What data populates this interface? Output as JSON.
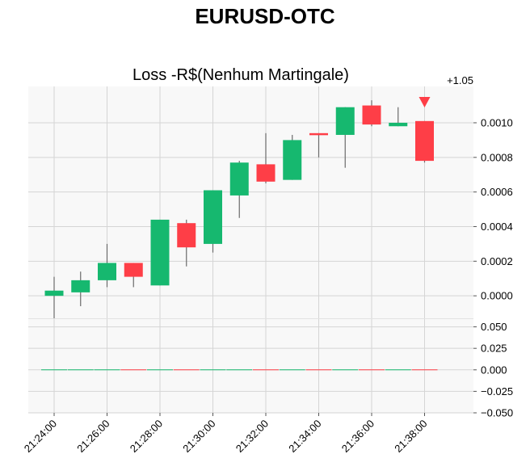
{
  "figure": {
    "title": "EURUSD-OTC"
  },
  "chart_data": {
    "type": "candlestick",
    "subtitle": "Loss -R$(Nenhum Martingale)",
    "price_offset_label": "+1.05",
    "x_ticks": [
      "21:24:00",
      "21:26:00",
      "21:28:00",
      "21:30:00",
      "21:32:00",
      "21:34:00",
      "21:36:00",
      "21:38:00"
    ],
    "price_yticks": [
      "0.0000",
      "0.0002",
      "0.0004",
      "0.0006",
      "0.0008",
      "0.0010"
    ],
    "price_ylim": [
      -0.00013,
      0.00121
    ],
    "volume_yticks": [
      "0.050",
      "0.025",
      "0.000",
      "−0.025",
      "−0.050"
    ],
    "volume_ylim": [
      -0.05,
      0.059
    ],
    "up_color": "#16b86f",
    "down_color": "#fe3e47",
    "marker": {
      "time": "21:38:00",
      "symbol": "down-triangle",
      "color": "#fe3e47"
    },
    "candles": [
      {
        "time": "21:24:00",
        "open": 0.0,
        "high": 0.00011,
        "low": -0.00013,
        "close": 3e-05
      },
      {
        "time": "21:25:00",
        "open": 2e-05,
        "high": 0.00014,
        "low": -6e-05,
        "close": 9e-05
      },
      {
        "time": "21:26:00",
        "open": 9e-05,
        "high": 0.0003,
        "low": 5e-05,
        "close": 0.00019
      },
      {
        "time": "21:27:00",
        "open": 0.00019,
        "high": 0.00019,
        "low": 5e-05,
        "close": 0.00011
      },
      {
        "time": "21:28:00",
        "open": 6e-05,
        "high": 0.00044,
        "low": 6e-05,
        "close": 0.00044
      },
      {
        "time": "21:29:00",
        "open": 0.00042,
        "high": 0.00044,
        "low": 0.00017,
        "close": 0.00028
      },
      {
        "time": "21:30:00",
        "open": 0.0003,
        "high": 0.00061,
        "low": 0.00025,
        "close": 0.00061
      },
      {
        "time": "21:31:00",
        "open": 0.00058,
        "high": 0.00078,
        "low": 0.00045,
        "close": 0.00077
      },
      {
        "time": "21:32:00",
        "open": 0.00076,
        "high": 0.00094,
        "low": 0.00065,
        "close": 0.00066
      },
      {
        "time": "21:33:00",
        "open": 0.00067,
        "high": 0.00093,
        "low": 0.00067,
        "close": 0.0009
      },
      {
        "time": "21:34:00",
        "open": 0.00094,
        "high": 0.00094,
        "low": 0.0008,
        "close": 0.00093
      },
      {
        "time": "21:35:00",
        "open": 0.00093,
        "high": 0.00109,
        "low": 0.00074,
        "close": 0.00109
      },
      {
        "time": "21:36:00",
        "open": 0.0011,
        "high": 0.00113,
        "low": 0.00098,
        "close": 0.00099
      },
      {
        "time": "21:37:00",
        "open": 0.00098,
        "high": 0.00109,
        "low": 0.00098,
        "close": 0.001
      },
      {
        "time": "21:38:00",
        "open": 0.00101,
        "high": 0.00101,
        "low": 0.00077,
        "close": 0.00078
      }
    ]
  }
}
